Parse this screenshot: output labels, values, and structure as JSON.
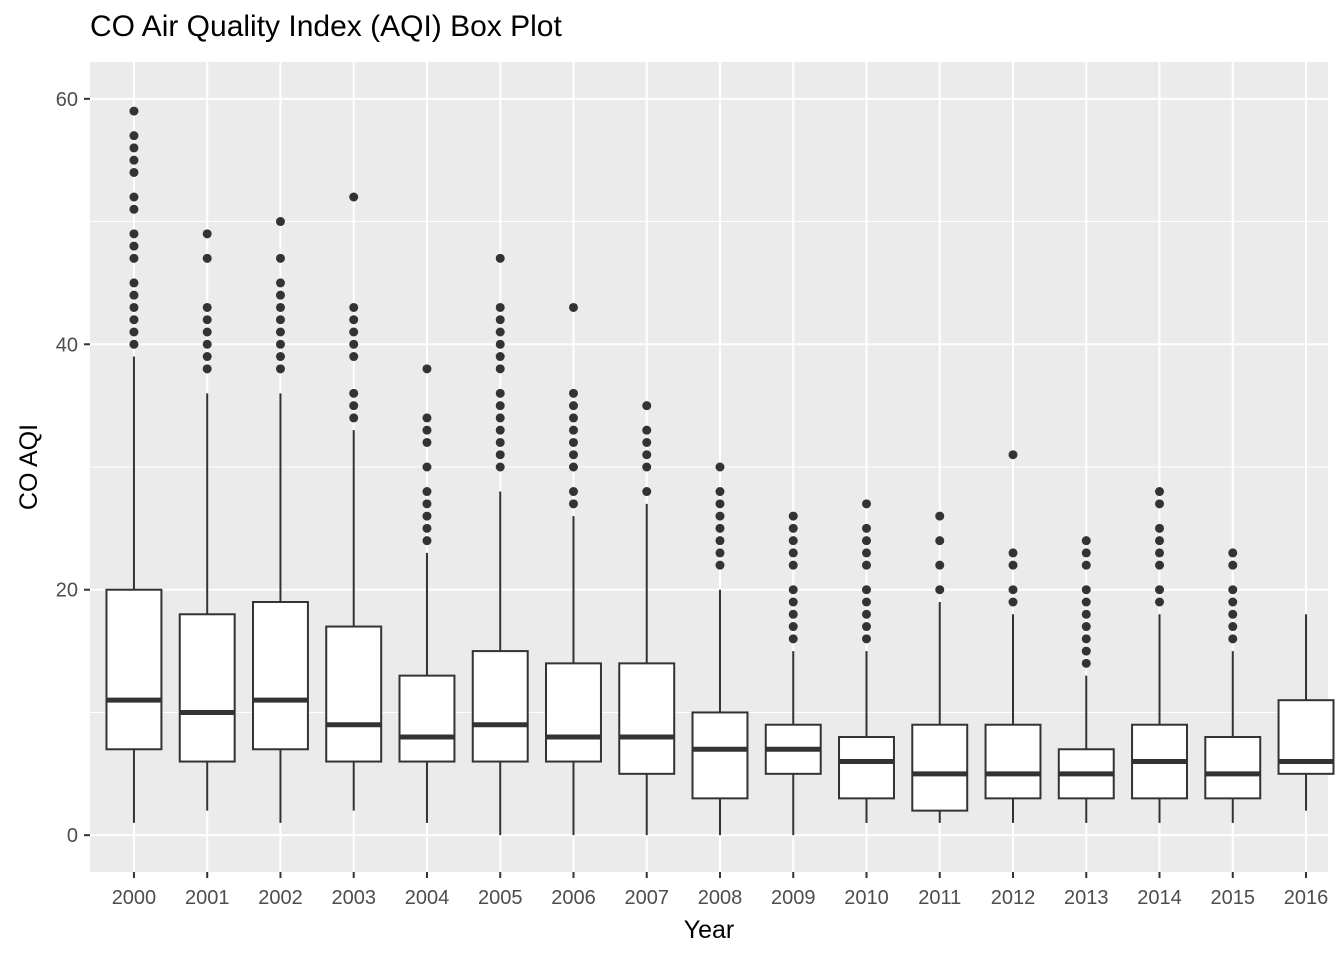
{
  "chart_data": {
    "type": "box",
    "title": "CO Air Quality Index (AQI) Box Plot",
    "xlabel": "Year",
    "ylabel": "CO AQI",
    "ylim": [
      -3,
      63
    ],
    "yticks": [
      0,
      20,
      40,
      60
    ],
    "grid": true,
    "categories": [
      "2000",
      "2001",
      "2002",
      "2003",
      "2004",
      "2005",
      "2006",
      "2007",
      "2008",
      "2009",
      "2010",
      "2011",
      "2012",
      "2013",
      "2014",
      "2015",
      "2016"
    ],
    "boxes": [
      {
        "year": "2000",
        "q1": 7,
        "median": 11,
        "q3": 20,
        "whisker_low": 1,
        "whisker_high": 39,
        "outliers": [
          40,
          41,
          42,
          43,
          44,
          45,
          47,
          48,
          49,
          51,
          52,
          54,
          55,
          56,
          57,
          59
        ]
      },
      {
        "year": "2001",
        "q1": 6,
        "median": 10,
        "q3": 18,
        "whisker_low": 2,
        "whisker_high": 36,
        "outliers": [
          38,
          39,
          40,
          41,
          42,
          43,
          47,
          49
        ]
      },
      {
        "year": "2002",
        "q1": 7,
        "median": 11,
        "q3": 19,
        "whisker_low": 1,
        "whisker_high": 36,
        "outliers": [
          38,
          39,
          40,
          41,
          42,
          43,
          44,
          45,
          47,
          50
        ]
      },
      {
        "year": "2003",
        "q1": 6,
        "median": 9,
        "q3": 17,
        "whisker_low": 2,
        "whisker_high": 33,
        "outliers": [
          34,
          35,
          36,
          39,
          40,
          41,
          42,
          43,
          52
        ]
      },
      {
        "year": "2004",
        "q1": 6,
        "median": 8,
        "q3": 13,
        "whisker_low": 1,
        "whisker_high": 23,
        "outliers": [
          24,
          25,
          26,
          27,
          28,
          30,
          32,
          33,
          34,
          38
        ]
      },
      {
        "year": "2005",
        "q1": 6,
        "median": 9,
        "q3": 15,
        "whisker_low": 0,
        "whisker_high": 28,
        "outliers": [
          30,
          31,
          32,
          33,
          34,
          35,
          36,
          38,
          39,
          40,
          41,
          42,
          43,
          47
        ]
      },
      {
        "year": "2006",
        "q1": 6,
        "median": 8,
        "q3": 14,
        "whisker_low": 0,
        "whisker_high": 26,
        "outliers": [
          27,
          28,
          30,
          31,
          32,
          33,
          34,
          35,
          36,
          43
        ]
      },
      {
        "year": "2007",
        "q1": 5,
        "median": 8,
        "q3": 14,
        "whisker_low": 0,
        "whisker_high": 27,
        "outliers": [
          28,
          30,
          31,
          32,
          33,
          35
        ]
      },
      {
        "year": "2008",
        "q1": 3,
        "median": 7,
        "q3": 10,
        "whisker_low": 0,
        "whisker_high": 20,
        "outliers": [
          22,
          23,
          24,
          25,
          26,
          27,
          28,
          30
        ]
      },
      {
        "year": "2009",
        "q1": 5,
        "median": 7,
        "q3": 9,
        "whisker_low": 0,
        "whisker_high": 15,
        "outliers": [
          16,
          17,
          18,
          19,
          20,
          22,
          23,
          24,
          25,
          26
        ]
      },
      {
        "year": "2010",
        "q1": 3,
        "median": 6,
        "q3": 8,
        "whisker_low": 1,
        "whisker_high": 15,
        "outliers": [
          16,
          17,
          18,
          19,
          20,
          22,
          23,
          24,
          25,
          27
        ]
      },
      {
        "year": "2011",
        "q1": 2,
        "median": 5,
        "q3": 9,
        "whisker_low": 1,
        "whisker_high": 19,
        "outliers": [
          20,
          22,
          24,
          26
        ]
      },
      {
        "year": "2012",
        "q1": 3,
        "median": 5,
        "q3": 9,
        "whisker_low": 1,
        "whisker_high": 18,
        "outliers": [
          19,
          20,
          22,
          23,
          31
        ]
      },
      {
        "year": "2013",
        "q1": 3,
        "median": 5,
        "q3": 7,
        "whisker_low": 1,
        "whisker_high": 13,
        "outliers": [
          14,
          15,
          16,
          17,
          18,
          19,
          20,
          22,
          23,
          24
        ]
      },
      {
        "year": "2014",
        "q1": 3,
        "median": 6,
        "q3": 9,
        "whisker_low": 1,
        "whisker_high": 18,
        "outliers": [
          19,
          20,
          22,
          23,
          24,
          25,
          27,
          28
        ]
      },
      {
        "year": "2015",
        "q1": 3,
        "median": 5,
        "q3": 8,
        "whisker_low": 1,
        "whisker_high": 15,
        "outliers": [
          16,
          17,
          18,
          19,
          20,
          22,
          23
        ]
      },
      {
        "year": "2016",
        "q1": 5,
        "median": 6,
        "q3": 11,
        "whisker_low": 2,
        "whisker_high": 18,
        "outliers": []
      }
    ],
    "colors": {
      "panel": "#ebebeb",
      "grid": "#ffffff",
      "box_fill": "#ffffff",
      "stroke": "#333333",
      "outlier": "#333333"
    }
  }
}
